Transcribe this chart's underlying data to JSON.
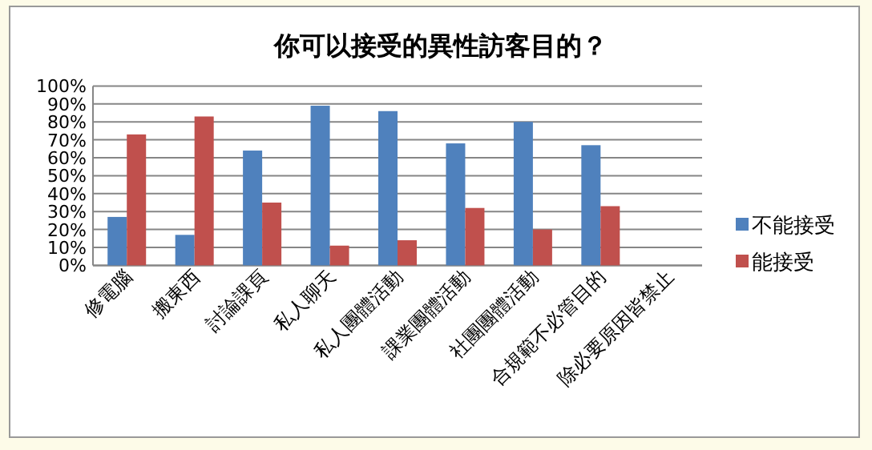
{
  "chart_data": {
    "type": "bar",
    "title": "你可以接受的異性訪客目的？",
    "categories": [
      "修電腦",
      "搬東西",
      "討論課頁",
      "私人聊天",
      "私人團體活動",
      "課業團體活動",
      "社團團體活動",
      "合規範不必管目的",
      "除必要原因皆禁止"
    ],
    "series": [
      {
        "name": "不能接受",
        "color": "#4f81bd",
        "values": [
          27,
          17,
          64,
          89,
          86,
          68,
          80,
          67,
          null
        ]
      },
      {
        "name": "能接受",
        "color": "#c0504d",
        "values": [
          73,
          83,
          35,
          11,
          14,
          32,
          20,
          33,
          null
        ]
      }
    ],
    "ylim": [
      0,
      100
    ],
    "yticks": [
      {
        "value": 0,
        "label": "0%"
      },
      {
        "value": 10,
        "label": "10%"
      },
      {
        "value": 20,
        "label": "20%"
      },
      {
        "value": 30,
        "label": "30%"
      },
      {
        "value": 40,
        "label": "40%"
      },
      {
        "value": 50,
        "label": "50%"
      },
      {
        "value": 60,
        "label": "60%"
      },
      {
        "value": 70,
        "label": "70%"
      },
      {
        "value": 80,
        "label": "80%"
      },
      {
        "value": 90,
        "label": "90%"
      },
      {
        "value": 100,
        "label": "100%"
      }
    ],
    "grid": "y",
    "legend": "right"
  }
}
